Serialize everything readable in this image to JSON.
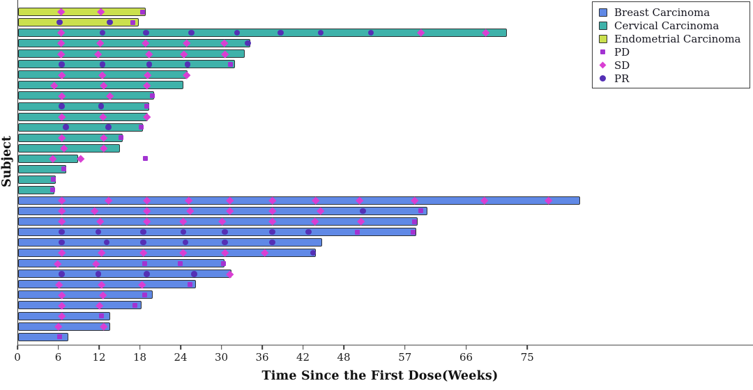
{
  "chart_data": {
    "type": "bar",
    "subtype": "swimmer-plot",
    "orientation": "horizontal",
    "title": "",
    "xlabel": "Time Since the First Dose(Weeks)",
    "ylabel": "Subject",
    "xlim": [
      0,
      108
    ],
    "xticks": [
      0,
      6,
      12,
      18,
      24,
      30,
      36,
      42,
      48,
      57,
      66,
      75
    ],
    "grid": false,
    "legend_position": "top-right",
    "axis_color": "#3a3a3a",
    "text_color": "#1c1c1c",
    "groups": [
      {
        "name": "Breast Carcinoma",
        "color": "#6089E6"
      },
      {
        "name": "Cervical Carcinoma",
        "color": "#3FB2AA"
      },
      {
        "name": "Endometrial Carcinoma",
        "color": "#CBE04E"
      }
    ],
    "marker_types": [
      {
        "name": "PD",
        "shape": "square",
        "color": "#A233D1"
      },
      {
        "name": "SD",
        "shape": "diamond",
        "color": "#D93FD3"
      },
      {
        "name": "PR",
        "shape": "circle",
        "color": "#5430B5"
      }
    ],
    "subjects": [
      {
        "group": "Endometrial Carcinoma",
        "length": 18.8,
        "markers": [
          [
            "SD",
            6.3
          ],
          [
            "SD",
            12.2
          ],
          [
            "PD",
            18.3
          ]
        ]
      },
      {
        "group": "Endometrial Carcinoma",
        "length": 17.7,
        "markers": [
          [
            "PR",
            6.1
          ],
          [
            "PR",
            13.5
          ],
          [
            "PD",
            16.9
          ]
        ]
      },
      {
        "group": "Cervical Carcinoma",
        "length": 71.9,
        "markers": [
          [
            "SD",
            6.3
          ],
          [
            "PR",
            12.4
          ],
          [
            "PR",
            18.8
          ],
          [
            "PR",
            25.5
          ],
          [
            "PR",
            32.2
          ],
          [
            "PR",
            38.6
          ],
          [
            "PR",
            44.5
          ],
          [
            "PR",
            51.9
          ],
          [
            "SD",
            59.2
          ],
          [
            "SD",
            68.8
          ]
        ]
      },
      {
        "group": "Cervical Carcinoma",
        "length": 34.1,
        "markers": [
          [
            "SD",
            6.3
          ],
          [
            "SD",
            12.1
          ],
          [
            "SD",
            18.7
          ],
          [
            "SD",
            24.8
          ],
          [
            "SD",
            30.3
          ],
          [
            "PR",
            33.8
          ]
        ]
      },
      {
        "group": "Cervical Carcinoma",
        "length": 33.3,
        "markers": [
          [
            "SD",
            6.3
          ],
          [
            "SD",
            11.8
          ],
          [
            "SD",
            19.2
          ],
          [
            "SD",
            24.4
          ],
          [
            "SD",
            30.4
          ]
        ]
      },
      {
        "group": "Cervical Carcinoma",
        "length": 31.9,
        "markers": [
          [
            "PR",
            6.4
          ],
          [
            "PR",
            12.4
          ],
          [
            "PR",
            19.3
          ],
          [
            "PR",
            24.9
          ],
          [
            "PD",
            31.2
          ]
        ]
      },
      {
        "group": "Cervical Carcinoma",
        "length": 24.9,
        "markers": [
          [
            "SD",
            6.4
          ],
          [
            "SD",
            12.4
          ],
          [
            "SD",
            19.0
          ],
          [
            "SD",
            24.8
          ]
        ]
      },
      {
        "group": "Cervical Carcinoma",
        "length": 24.3,
        "markers": [
          [
            "SD",
            5.3
          ],
          [
            "SD",
            12.6
          ],
          [
            "SD",
            18.9
          ]
        ]
      },
      {
        "group": "Cervical Carcinoma",
        "length": 20.0,
        "markers": [
          [
            "SD",
            6.4
          ],
          [
            "SD",
            13.5
          ],
          [
            "PD",
            19.7
          ]
        ]
      },
      {
        "group": "Cervical Carcinoma",
        "length": 19.3,
        "markers": [
          [
            "PR",
            6.4
          ],
          [
            "PR",
            12.2
          ],
          [
            "PD",
            18.9
          ]
        ]
      },
      {
        "group": "Cervical Carcinoma",
        "length": 19.1,
        "markers": [
          [
            "SD",
            6.4
          ],
          [
            "SD",
            12.5
          ],
          [
            "SD",
            18.9
          ]
        ]
      },
      {
        "group": "Cervical Carcinoma",
        "length": 18.4,
        "markers": [
          [
            "PR",
            7.0
          ],
          [
            "PR",
            13.3
          ],
          [
            "PD",
            18.1
          ]
        ]
      },
      {
        "group": "Cervical Carcinoma",
        "length": 15.4,
        "markers": [
          [
            "SD",
            6.4
          ],
          [
            "SD",
            12.6
          ],
          [
            "PD",
            15.1
          ]
        ]
      },
      {
        "group": "Cervical Carcinoma",
        "length": 15.0,
        "markers": [
          [
            "SD",
            6.7
          ],
          [
            "SD",
            12.6
          ]
        ]
      },
      {
        "group": "Cervical Carcinoma",
        "length": 8.8,
        "markers": [
          [
            "SD",
            5.1
          ],
          [
            "SD",
            9.2
          ],
          [
            "PD",
            18.7
          ]
        ]
      },
      {
        "group": "Cervical Carcinoma",
        "length": 7.1,
        "markers": [
          [
            "PD",
            6.7
          ]
        ]
      },
      {
        "group": "Cervical Carcinoma",
        "length": 5.5,
        "markers": [
          [
            "PD",
            5.2
          ]
        ]
      },
      {
        "group": "Cervical Carcinoma",
        "length": 5.3,
        "markers": [
          [
            "PD",
            5.1
          ]
        ]
      },
      {
        "group": "Breast Carcinoma",
        "length": 82.7,
        "markers": [
          [
            "SD",
            6.4
          ],
          [
            "SD",
            13.3
          ],
          [
            "SD",
            18.9
          ],
          [
            "SD",
            25.1
          ],
          [
            "SD",
            31.2
          ],
          [
            "SD",
            37.4
          ],
          [
            "SD",
            43.8
          ],
          [
            "SD",
            50.2
          ],
          [
            "SD",
            58.3
          ],
          [
            "SD",
            68.6
          ],
          [
            "SD",
            78.0
          ]
        ]
      },
      {
        "group": "Breast Carcinoma",
        "length": 60.2,
        "markers": [
          [
            "SD",
            6.4
          ],
          [
            "SD",
            11.3
          ],
          [
            "SD",
            18.9
          ],
          [
            "SD",
            25.3
          ],
          [
            "SD",
            31.2
          ],
          [
            "SD",
            37.4
          ],
          [
            "SD",
            44.5
          ],
          [
            "PR",
            50.7
          ],
          [
            "PD",
            59.2
          ]
        ]
      },
      {
        "group": "Breast Carcinoma",
        "length": 58.8,
        "markers": [
          [
            "SD",
            6.4
          ],
          [
            "SD",
            12.1
          ],
          [
            "SD",
            18.9
          ],
          [
            "SD",
            24.3
          ],
          [
            "SD",
            30.0
          ],
          [
            "SD",
            37.4
          ],
          [
            "SD",
            43.7
          ],
          [
            "SD",
            50.4
          ],
          [
            "PD",
            58.3
          ]
        ]
      },
      {
        "group": "Breast Carcinoma",
        "length": 58.6,
        "markers": [
          [
            "PR",
            6.4
          ],
          [
            "PR",
            11.8
          ],
          [
            "PR",
            18.4
          ],
          [
            "PR",
            24.3
          ],
          [
            "PR",
            30.4
          ],
          [
            "PR",
            37.4
          ],
          [
            "PR",
            42.7
          ],
          [
            "PD",
            49.9
          ],
          [
            "PD",
            58.1
          ]
        ]
      },
      {
        "group": "Breast Carcinoma",
        "length": 44.7,
        "markers": [
          [
            "PR",
            6.4
          ],
          [
            "PR",
            13.0
          ],
          [
            "PR",
            18.4
          ],
          [
            "PR",
            24.6
          ],
          [
            "PR",
            30.4
          ],
          [
            "PR",
            37.4
          ]
        ]
      },
      {
        "group": "Breast Carcinoma",
        "length": 43.8,
        "markers": [
          [
            "SD",
            6.4
          ],
          [
            "SD",
            12.3
          ],
          [
            "SD",
            18.4
          ],
          [
            "SD",
            24.3
          ],
          [
            "SD",
            30.4
          ],
          [
            "SD",
            36.3
          ],
          [
            "PR",
            43.4
          ]
        ]
      },
      {
        "group": "Breast Carcinoma",
        "length": 30.4,
        "markers": [
          [
            "SD",
            5.8
          ],
          [
            "SD",
            11.5
          ],
          [
            "PD",
            18.6
          ],
          [
            "PD",
            23.8
          ],
          [
            "PD",
            30.2
          ]
        ]
      },
      {
        "group": "Breast Carcinoma",
        "length": 31.4,
        "markers": [
          [
            "PR",
            6.4
          ],
          [
            "PR",
            11.8
          ],
          [
            "PR",
            18.9
          ],
          [
            "PR",
            25.9
          ],
          [
            "SD",
            31.2
          ]
        ]
      },
      {
        "group": "Breast Carcinoma",
        "length": 26.2,
        "markers": [
          [
            "SD",
            6.0
          ],
          [
            "SD",
            12.3
          ],
          [
            "SD",
            18.2
          ],
          [
            "PD",
            25.3
          ]
        ]
      },
      {
        "group": "Breast Carcinoma",
        "length": 19.8,
        "markers": [
          [
            "SD",
            6.4
          ],
          [
            "SD",
            12.5
          ],
          [
            "PD",
            18.6
          ]
        ]
      },
      {
        "group": "Breast Carcinoma",
        "length": 18.1,
        "markers": [
          [
            "SD",
            6.4
          ],
          [
            "SD",
            12.0
          ],
          [
            "PD",
            17.2
          ]
        ]
      },
      {
        "group": "Breast Carcinoma",
        "length": 13.5,
        "markers": [
          [
            "SD",
            6.4
          ],
          [
            "PD",
            12.3
          ]
        ]
      },
      {
        "group": "Breast Carcinoma",
        "length": 13.5,
        "markers": [
          [
            "SD",
            5.9
          ],
          [
            "SD",
            12.6
          ]
        ]
      },
      {
        "group": "Breast Carcinoma",
        "length": 7.4,
        "markers": [
          [
            "PD",
            6.1
          ]
        ]
      }
    ]
  },
  "legend": {
    "items": [
      {
        "label": "Breast Carcinoma",
        "swatch": "patch",
        "color": "#6089E6"
      },
      {
        "label": "Cervical Carcinoma",
        "swatch": "patch",
        "color": "#3FB2AA"
      },
      {
        "label": "Endometrial Carcinoma",
        "swatch": "patch",
        "color": "#CBE04E"
      },
      {
        "label": "PD",
        "swatch": "square",
        "color": "#A233D1"
      },
      {
        "label": "SD",
        "swatch": "diamond",
        "color": "#D93FD3"
      },
      {
        "label": "PR",
        "swatch": "circle",
        "color": "#5430B5"
      }
    ]
  }
}
